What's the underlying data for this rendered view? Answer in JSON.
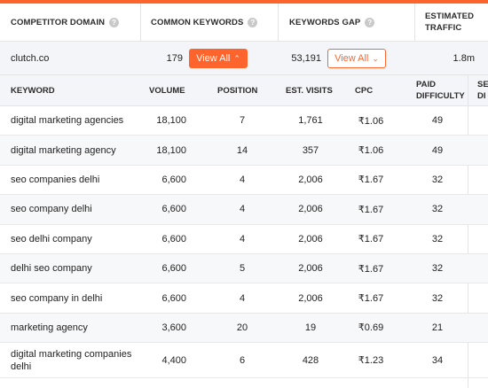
{
  "competitor_header": {
    "domain": "COMPETITOR DOMAIN",
    "common": "COMMON KEYWORDS",
    "gap": "KEYWORDS GAP",
    "traffic_line1": "ESTIMATED",
    "traffic_line2": "TRAFFIC",
    "help_glyph": "?"
  },
  "competitor_row": {
    "domain": "clutch.co",
    "common_count": "179",
    "view_all_common": "View All",
    "gap_count": "53,191",
    "view_all_gap": "View All",
    "traffic": "1.8m"
  },
  "keyword_header": {
    "keyword": "KEYWORD",
    "volume": "VOLUME",
    "position": "POSITION",
    "est_visits": "EST. VISITS",
    "cpc": "CPC",
    "paid_line1": "PAID",
    "paid_line2": "DIFFICULTY",
    "cut1": "SE",
    "cut2": "DI"
  },
  "rows": [
    {
      "keyword": "digital marketing agencies",
      "volume": "18,100",
      "position": "7",
      "est_visits": "1,761",
      "cpc": "₹1.06",
      "paid_difficulty": "49"
    },
    {
      "keyword": "digital marketing agency",
      "volume": "18,100",
      "position": "14",
      "est_visits": "357",
      "cpc": "₹1.06",
      "paid_difficulty": "49"
    },
    {
      "keyword": "seo companies delhi",
      "volume": "6,600",
      "position": "4",
      "est_visits": "2,006",
      "cpc": "₹1.67",
      "paid_difficulty": "32"
    },
    {
      "keyword": "seo company delhi",
      "volume": "6,600",
      "position": "4",
      "est_visits": "2,006",
      "cpc": "₹1.67",
      "paid_difficulty": "32"
    },
    {
      "keyword": "seo delhi company",
      "volume": "6,600",
      "position": "4",
      "est_visits": "2,006",
      "cpc": "₹1.67",
      "paid_difficulty": "32"
    },
    {
      "keyword": "delhi seo company",
      "volume": "6,600",
      "position": "5",
      "est_visits": "2,006",
      "cpc": "₹1.67",
      "paid_difficulty": "32"
    },
    {
      "keyword": "seo company in delhi",
      "volume": "6,600",
      "position": "4",
      "est_visits": "2,006",
      "cpc": "₹1.67",
      "paid_difficulty": "32"
    },
    {
      "keyword": "marketing agency",
      "volume": "3,600",
      "position": "20",
      "est_visits": "19",
      "cpc": "₹0.69",
      "paid_difficulty": "21"
    },
    {
      "keyword": "digital marketing companies delhi",
      "volume": "4,400",
      "position": "6",
      "est_visits": "428",
      "cpc": "₹1.23",
      "paid_difficulty": "34"
    }
  ],
  "colors": {
    "accent": "#ff642d",
    "header_bg": "#f4f5f8"
  },
  "icons": {
    "help": "question-circle-icon",
    "chevron_up": "chevron-up-icon",
    "chevron_down": "chevron-down-icon"
  }
}
